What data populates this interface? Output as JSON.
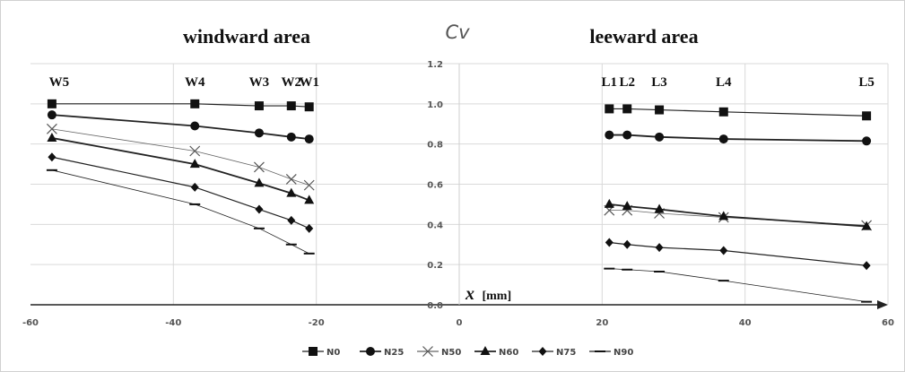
{
  "chart_data": {
    "type": "line",
    "region_titles": {
      "left": "windward area",
      "right": "leeward area"
    },
    "ylabel": "Cv",
    "xlabel": {
      "symbol": "x",
      "unit": "[mm]"
    },
    "xlim": [
      -60,
      60
    ],
    "ylim": [
      0.0,
      1.2
    ],
    "x_ticks": [
      "-60",
      "-40",
      "-20",
      "0",
      "20",
      "40",
      "60"
    ],
    "y_ticks": [
      "0.0",
      "0.2",
      "0.4",
      "0.6",
      "0.8",
      "1.0",
      "1.2"
    ],
    "grid": true,
    "legend_position": "bottom",
    "markers": [
      {
        "label": "W5",
        "x": -57
      },
      {
        "label": "W4",
        "x": -37
      },
      {
        "label": "W3",
        "x": -28
      },
      {
        "label": "W2",
        "x": -23.5
      },
      {
        "label": "W1",
        "x": -21
      },
      {
        "label": "L1",
        "x": 21
      },
      {
        "label": "L2",
        "x": 23.5
      },
      {
        "label": "L3",
        "x": 28
      },
      {
        "label": "L4",
        "x": 37
      },
      {
        "label": "L5",
        "x": 57
      }
    ],
    "windward_x": [
      -57,
      -37,
      -28,
      -23.5,
      -21
    ],
    "leeward_x": [
      21,
      23.5,
      28,
      37,
      57
    ],
    "series": [
      {
        "name": "N0",
        "marker": "square",
        "stroke": 1.2,
        "windward": [
          1.0,
          1.0,
          0.99,
          0.99,
          0.985
        ],
        "leeward": [
          0.975,
          0.975,
          0.97,
          0.96,
          0.94
        ]
      },
      {
        "name": "N25",
        "marker": "circle",
        "stroke": 1.8,
        "windward": [
          0.945,
          0.89,
          0.855,
          0.835,
          0.825
        ],
        "leeward": [
          0.845,
          0.845,
          0.835,
          0.825,
          0.815
        ]
      },
      {
        "name": "N50",
        "marker": "x",
        "stroke": 0.8,
        "windward": [
          0.875,
          0.765,
          0.685,
          0.625,
          0.595
        ],
        "leeward": [
          0.47,
          0.47,
          0.455,
          0.435,
          0.395
        ]
      },
      {
        "name": "N60",
        "marker": "triangle",
        "stroke": 1.8,
        "windward": [
          0.83,
          0.7,
          0.605,
          0.555,
          0.52
        ],
        "leeward": [
          0.5,
          0.49,
          0.475,
          0.44,
          0.39
        ]
      },
      {
        "name": "N75",
        "marker": "diamond",
        "stroke": 1.2,
        "windward": [
          0.735,
          0.585,
          0.475,
          0.42,
          0.38
        ],
        "leeward": [
          0.31,
          0.3,
          0.285,
          0.27,
          0.195
        ]
      },
      {
        "name": "N90",
        "marker": "dash",
        "stroke": 0.8,
        "windward": [
          0.67,
          0.5,
          0.38,
          0.3,
          0.255
        ],
        "leeward": [
          0.18,
          0.175,
          0.165,
          0.12,
          0.015
        ]
      }
    ]
  }
}
